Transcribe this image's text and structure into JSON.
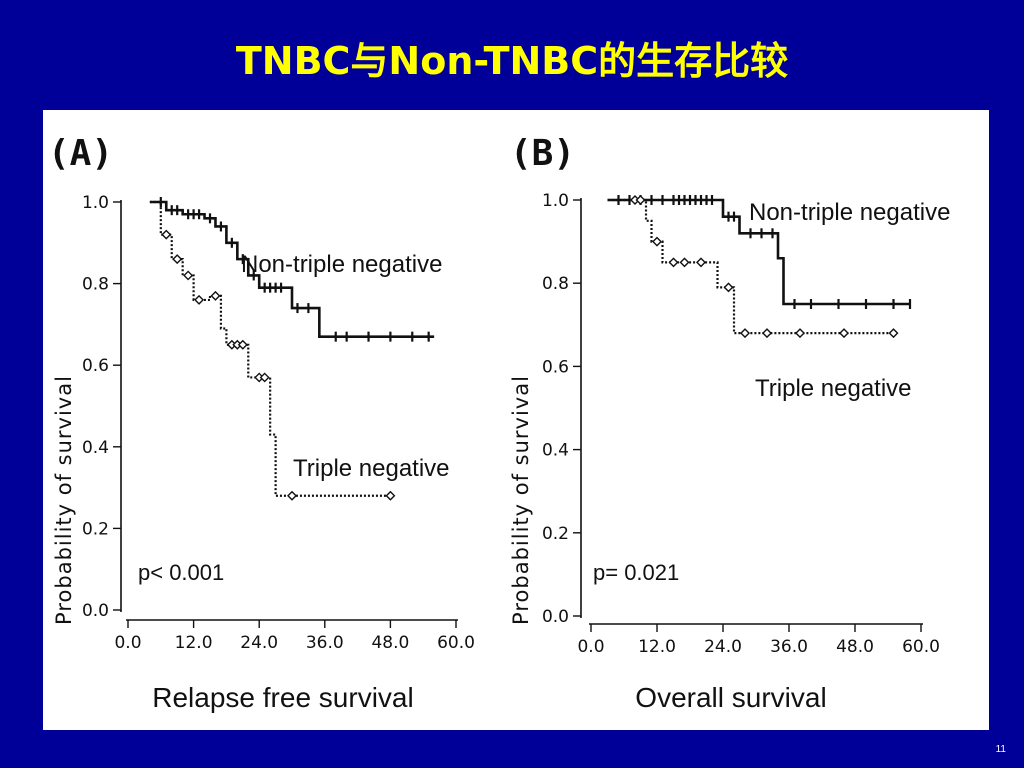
{
  "slide": {
    "title": "TNBC与Non-TNBC的生存比较",
    "page_number": "11",
    "background_color": "#000099",
    "title_color": "#ffff00"
  },
  "chart_data": [
    {
      "type": "line",
      "panel_label": "(A)",
      "title": "",
      "xlabel": "Relapse free survival",
      "ylabel": "Probability of survival",
      "xlim": [
        0,
        60
      ],
      "ylim": [
        0,
        1
      ],
      "x_ticks": [
        "0.0",
        "12.0",
        "24.0",
        "36.0",
        "48.0",
        "60.0"
      ],
      "y_ticks": [
        "0.0",
        "0.2",
        "0.4",
        "0.6",
        "0.8",
        "1.0"
      ],
      "annotation": "p< 0.001",
      "series": [
        {
          "name": "Non-triple negative",
          "style": "solid",
          "steps": [
            [
              4,
              1.0
            ],
            [
              7,
              0.98
            ],
            [
              10,
              0.97
            ],
            [
              14,
              0.96
            ],
            [
              16,
              0.94
            ],
            [
              18,
              0.9
            ],
            [
              20,
              0.86
            ],
            [
              22,
              0.82
            ],
            [
              24,
              0.79
            ],
            [
              30,
              0.74
            ],
            [
              35,
              0.67
            ],
            [
              56,
              0.67
            ]
          ],
          "censored_x": [
            6,
            8,
            9,
            11,
            12,
            13,
            15,
            17,
            19,
            21,
            23,
            25,
            26,
            27,
            28,
            31,
            33,
            38,
            40,
            44,
            48,
            52,
            55
          ]
        },
        {
          "name": "Triple negative",
          "style": "dotted",
          "steps": [
            [
              4,
              1.0
            ],
            [
              6,
              0.92
            ],
            [
              8,
              0.86
            ],
            [
              10,
              0.82
            ],
            [
              12,
              0.76
            ],
            [
              15,
              0.77
            ],
            [
              17,
              0.69
            ],
            [
              18,
              0.65
            ],
            [
              22,
              0.57
            ],
            [
              26,
              0.43
            ],
            [
              27,
              0.28
            ],
            [
              48,
              0.28
            ]
          ],
          "censored_x": [
            7,
            9,
            11,
            13,
            16,
            19,
            20,
            21,
            24,
            25,
            30,
            48
          ]
        }
      ]
    },
    {
      "type": "line",
      "panel_label": "(B)",
      "title": "",
      "xlabel": "Overall survival",
      "ylabel": "Probability of survival",
      "xlim": [
        0,
        60
      ],
      "ylim": [
        0,
        1
      ],
      "x_ticks": [
        "0.0",
        "12.0",
        "24.0",
        "36.0",
        "48.0",
        "60.0"
      ],
      "y_ticks": [
        "0.0",
        "0.2",
        "0.4",
        "0.6",
        "0.8",
        "1.0"
      ],
      "annotation": "p= 0.021",
      "series": [
        {
          "name": "Non-triple negative",
          "style": "solid",
          "steps": [
            [
              3,
              1.0
            ],
            [
              24,
              0.96
            ],
            [
              27,
              0.92
            ],
            [
              34,
              0.86
            ],
            [
              35,
              0.75
            ],
            [
              58,
              0.75
            ]
          ],
          "censored_x": [
            5,
            7,
            9,
            11,
            13,
            15,
            16,
            17,
            18,
            19,
            20,
            21,
            22,
            25,
            26,
            29,
            31,
            33,
            37,
            40,
            45,
            50,
            55,
            58
          ]
        },
        {
          "name": "Triple negative",
          "style": "dotted",
          "steps": [
            [
              3,
              1.0
            ],
            [
              10,
              0.95
            ],
            [
              11,
              0.9
            ],
            [
              13,
              0.85
            ],
            [
              23,
              0.79
            ],
            [
              26,
              0.68
            ],
            [
              55,
              0.68
            ]
          ],
          "censored_x": [
            8,
            9,
            12,
            15,
            17,
            20,
            25,
            28,
            32,
            38,
            46,
            55
          ]
        }
      ]
    }
  ]
}
